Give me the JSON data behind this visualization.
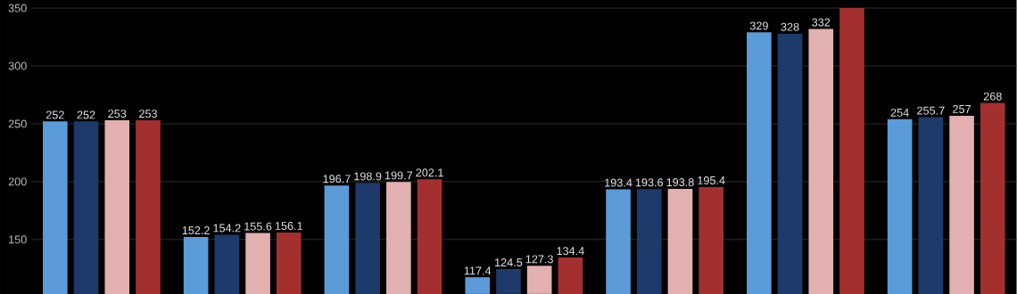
{
  "chart_data": {
    "type": "bar",
    "categories": [
      null,
      null,
      null,
      null,
      null,
      null,
      null
    ],
    "series": [
      {
        "color": "#5b9bd8",
        "values": [
          252,
          152.2,
          196.7,
          117.4,
          193.4,
          329,
          254
        ],
        "value_labels": [
          "252",
          "152.2",
          "196.7",
          "117.4",
          "193.4",
          "329",
          "254"
        ]
      },
      {
        "color": "#1d3a6b",
        "values": [
          252,
          154.2,
          198.9,
          124.5,
          193.6,
          328,
          255.7
        ],
        "value_labels": [
          "252",
          "154.2",
          "198.9",
          "124.5",
          "193.6",
          "328",
          "255.7"
        ]
      },
      {
        "color": "#e2b0b0",
        "values": [
          253,
          155.6,
          199.7,
          127.3,
          193.8,
          332,
          257
        ],
        "value_labels": [
          "253",
          "155.6",
          "199.7",
          "127.3",
          "193.8",
          "332",
          "257"
        ]
      },
      {
        "color": "#a3302f",
        "values": [
          253,
          156.1,
          202.1,
          134.4,
          195.4,
          350,
          268
        ],
        "value_labels": [
          "253",
          "156.1",
          "202.1",
          "134.4",
          "195.4",
          null,
          "268"
        ]
      }
    ],
    "ylim": [
      103,
      357
    ],
    "yticks": [
      150,
      200,
      250,
      300,
      350
    ],
    "grid": "y",
    "tick_labels": "y"
  }
}
